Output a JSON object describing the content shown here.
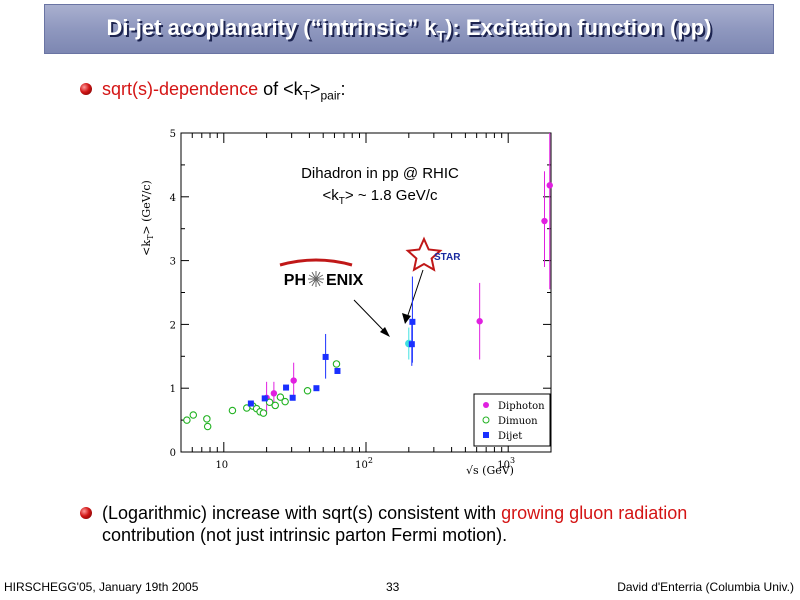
{
  "slide": {
    "title_pre": "Di-jet acoplanarity (“intrinsic” k",
    "title_sub": "T",
    "title_post": "): Excitation function (pp)",
    "bullet1": {
      "colored": "sqrt(s)-dependence",
      "middle": " of <k",
      "sub1": "T",
      "post": ">",
      "sub2": "pair",
      "end": ":"
    },
    "bullet2": {
      "pre": "(Logarithmic) increase with sqrt(s) consistent with ",
      "colored": "growing gluon radiation",
      "post": " contribution (not just intrinsic parton Fermi motion)."
    },
    "footer": {
      "left": "HIRSCHEGG'05, January 19th 2005",
      "center": "33",
      "right": "David d'Enterria (Columbia Univ.)"
    },
    "colors": {
      "accent_red": "#d41414",
      "title_bar": "#8f98bf"
    }
  },
  "chart_data": {
    "type": "scatter",
    "x_scale": "log",
    "xlim": [
      5,
      2000
    ],
    "ylim": [
      0,
      5
    ],
    "x_ticks": [
      {
        "value": 10,
        "label": "10"
      },
      {
        "value": 100,
        "label": "10",
        "sup": "2"
      },
      {
        "value": 1000,
        "label": "10",
        "sup": "3"
      }
    ],
    "y_ticks": [
      0,
      1,
      2,
      3,
      4,
      5
    ],
    "xlabel": "√s (GeV)",
    "ylabel": {
      "pre": "<k",
      "sub": "T",
      "post": "> (GeV/c)"
    },
    "annotation": {
      "line1": "Dihadron in pp @ RHIC",
      "line2_pre": "<k",
      "line2_sub": "T",
      "line2_post": "> ~ 1.8 GeV/c"
    },
    "logos": {
      "phenix_left": "PH",
      "phenix_right": "ENIX",
      "star": "STAR"
    },
    "legend": {
      "position": "bottom-right",
      "entries": [
        "Diphoton",
        "Dimuon",
        "Dijet"
      ]
    },
    "series": [
      {
        "name": "Diphoton",
        "marker": "filled-circle",
        "color": "#e020e0",
        "points": [
          {
            "x": 20,
            "y": 0.85,
            "lo": 0.6,
            "hi": 1.1
          },
          {
            "x": 22.5,
            "y": 0.92,
            "lo": 0.7,
            "hi": 1.1
          },
          {
            "x": 31,
            "y": 1.12,
            "lo": 0.85,
            "hi": 1.4
          },
          {
            "x": 630,
            "y": 2.05,
            "lo": 1.45,
            "hi": 2.65
          },
          {
            "x": 1800,
            "y": 3.62,
            "lo": 2.9,
            "hi": 4.4
          },
          {
            "x": 1960,
            "y": 4.18,
            "lo": 2.55,
            "hi": 5.0
          }
        ]
      },
      {
        "name": "Dimuon",
        "marker": "open-circle",
        "color": "#22b222",
        "points": [
          {
            "x": 5.5,
            "y": 0.5
          },
          {
            "x": 6.1,
            "y": 0.58
          },
          {
            "x": 7.6,
            "y": 0.52
          },
          {
            "x": 7.7,
            "y": 0.4
          },
          {
            "x": 11.5,
            "y": 0.65
          },
          {
            "x": 14.5,
            "y": 0.69
          },
          {
            "x": 16,
            "y": 0.72
          },
          {
            "x": 17,
            "y": 0.68
          },
          {
            "x": 18,
            "y": 0.63
          },
          {
            "x": 19,
            "y": 0.61
          },
          {
            "x": 21,
            "y": 0.78
          },
          {
            "x": 23,
            "y": 0.73
          },
          {
            "x": 25,
            "y": 0.86
          },
          {
            "x": 27,
            "y": 0.79
          },
          {
            "x": 38.8,
            "y": 0.96
          },
          {
            "x": 62,
            "y": 1.38
          },
          {
            "x": 200,
            "y": 1.7,
            "color": "#40e0e0",
            "lo": 1.45,
            "hi": 1.95
          }
        ]
      },
      {
        "name": "Dijet",
        "marker": "filled-square",
        "color": "#1a30ff",
        "points": [
          {
            "x": 15.5,
            "y": 0.76
          },
          {
            "x": 19.4,
            "y": 0.84
          },
          {
            "x": 27.4,
            "y": 1.01
          },
          {
            "x": 30.5,
            "y": 0.85
          },
          {
            "x": 44.8,
            "y": 1.0
          },
          {
            "x": 52,
            "y": 1.49,
            "lo": 1.15,
            "hi": 1.85
          },
          {
            "x": 63,
            "y": 1.27
          },
          {
            "x": 210,
            "y": 1.69,
            "lo": 1.35,
            "hi": 2.0
          },
          {
            "x": 212,
            "y": 2.04,
            "lo": 1.4,
            "hi": 2.75
          }
        ]
      }
    ]
  }
}
